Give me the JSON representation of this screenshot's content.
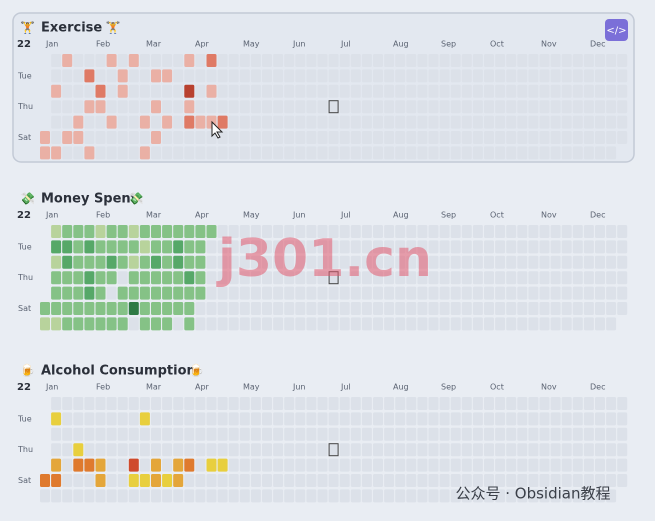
{
  "year": "22",
  "months": [
    "Jan",
    "Feb",
    "Mar",
    "Apr",
    "May",
    "Jun",
    "Jul",
    "Aug",
    "Sep",
    "Oct",
    "Nov",
    "Dec"
  ],
  "weekday_labels": [
    "Tue",
    "Thu",
    "Sat"
  ],
  "heatmaps": [
    {
      "title": "Exercise",
      "icon": "🏋️",
      "colors": [
        "#eab0a5",
        "#df7a65",
        "#b8412f"
      ],
      "levels": [
        [
          null,
          0,
          1,
          0,
          0,
          0,
          1,
          0,
          1,
          0,
          0,
          0,
          0,
          1,
          0,
          2,
          0
        ],
        [
          null,
          0,
          0,
          0,
          2,
          0,
          0,
          1,
          0,
          0,
          1,
          1,
          0,
          0,
          0,
          0,
          0
        ],
        [
          null,
          1,
          0,
          0,
          0,
          2,
          0,
          1,
          0,
          0,
          0,
          0,
          0,
          3,
          0,
          1,
          0
        ],
        [
          null,
          0,
          0,
          0,
          1,
          1,
          0,
          0,
          0,
          0,
          1,
          0,
          0,
          1,
          0,
          0,
          0
        ],
        [
          null,
          0,
          0,
          1,
          0,
          0,
          1,
          0,
          0,
          1,
          0,
          1,
          0,
          2,
          1,
          1,
          2
        ],
        [
          1,
          0,
          1,
          1,
          0,
          0,
          0,
          0,
          0,
          0,
          1,
          0,
          0,
          0,
          0,
          0,
          0
        ],
        [
          1,
          1,
          0,
          0,
          1,
          0,
          0,
          0,
          0,
          1,
          0,
          0,
          0,
          0,
          0,
          0,
          0
        ]
      ]
    },
    {
      "title": "Money Spent",
      "icon": "💸",
      "colors": [
        "#b8d39c",
        "#85c286",
        "#56a868",
        "#2e7a44"
      ],
      "levels": [
        [
          null,
          1,
          2,
          2,
          2,
          1,
          2,
          2,
          1,
          2,
          2,
          2,
          2,
          2,
          2,
          2,
          0
        ],
        [
          null,
          3,
          3,
          2,
          3,
          2,
          2,
          2,
          2,
          1,
          2,
          2,
          3,
          2,
          2,
          0,
          0
        ],
        [
          null,
          1,
          3,
          2,
          2,
          2,
          3,
          2,
          1,
          2,
          3,
          2,
          3,
          2,
          2,
          0,
          0
        ],
        [
          null,
          2,
          2,
          2,
          3,
          2,
          2,
          0,
          2,
          2,
          2,
          2,
          2,
          3,
          2,
          0,
          0
        ],
        [
          null,
          2,
          2,
          2,
          3,
          2,
          0,
          2,
          2,
          2,
          2,
          2,
          2,
          2,
          2,
          0,
          0
        ],
        [
          2,
          2,
          2,
          2,
          2,
          2,
          2,
          2,
          4,
          2,
          2,
          2,
          2,
          2,
          0,
          0,
          0
        ],
        [
          1,
          1,
          2,
          2,
          2,
          2,
          2,
          2,
          0,
          2,
          2,
          2,
          0,
          2,
          0,
          0,
          0
        ]
      ]
    },
    {
      "title": "Alcohol Consumption",
      "icon": "🍺",
      "colors": [
        "#e8cf3e",
        "#e4a63a",
        "#df7a2e",
        "#cf4a2c"
      ],
      "levels": [
        [
          null,
          0,
          0,
          0,
          0,
          0,
          0,
          0,
          0,
          0,
          0,
          0,
          0,
          0,
          0,
          0,
          0
        ],
        [
          null,
          1,
          0,
          0,
          0,
          0,
          0,
          0,
          0,
          1,
          0,
          0,
          0,
          0,
          0,
          0,
          0
        ],
        [
          null,
          0,
          0,
          0,
          0,
          0,
          0,
          0,
          0,
          0,
          0,
          0,
          0,
          0,
          0,
          0,
          0
        ],
        [
          null,
          0,
          0,
          1,
          0,
          0,
          0,
          0,
          0,
          0,
          0,
          0,
          0,
          0,
          0,
          0,
          0
        ],
        [
          null,
          2,
          0,
          3,
          3,
          2,
          0,
          0,
          4,
          0,
          2,
          0,
          2,
          3,
          0,
          1,
          1
        ],
        [
          3,
          3,
          0,
          0,
          0,
          2,
          0,
          0,
          1,
          1,
          2,
          1,
          2,
          0,
          0,
          0,
          0
        ],
        [
          0,
          0,
          0,
          0,
          0,
          0,
          0,
          0,
          0,
          0,
          0,
          0,
          0,
          0,
          0,
          0,
          0
        ]
      ]
    }
  ],
  "watermark": "j301.cn",
  "footer": "公众号 · Obsidian教程"
}
